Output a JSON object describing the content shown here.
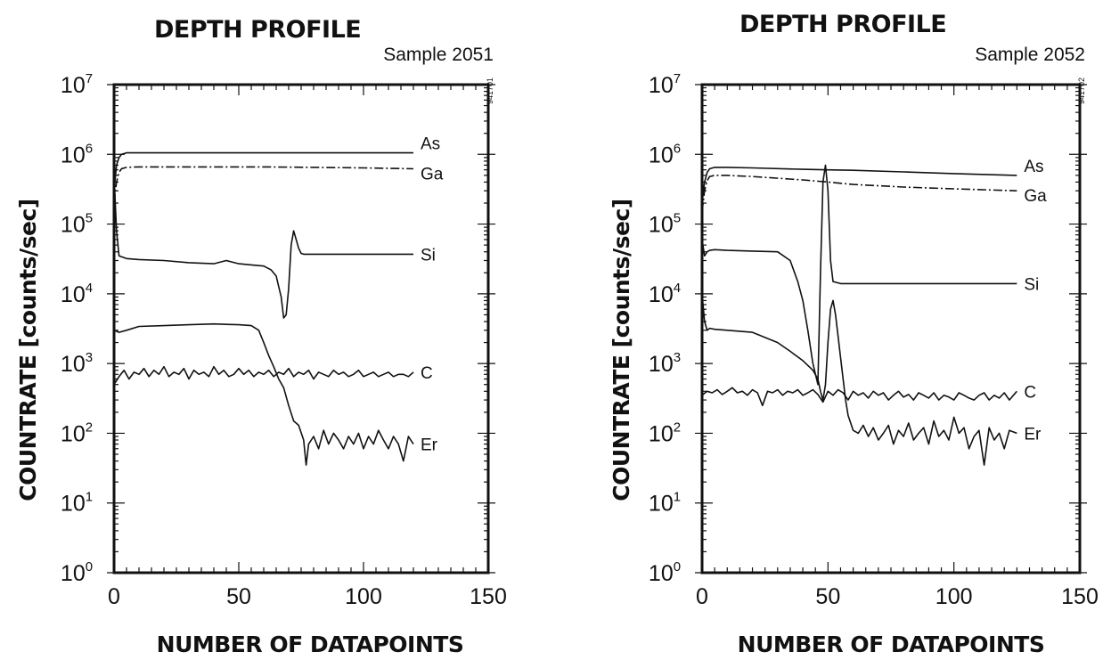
{
  "chart_data": [
    {
      "type": "line",
      "title": "DEPTH PROFILE",
      "subtitle": "Sample 2051",
      "code": "941701",
      "xlabel": "NUMBER OF DATAPOINTS",
      "ylabel": "COUNTRATE [counts/sec]",
      "xlim": [
        0,
        150
      ],
      "ylim": [
        1,
        10000000
      ],
      "yscale": "log",
      "xticks": [
        "0",
        "50",
        "100",
        "150"
      ],
      "yticks": [
        {
          "base": "10",
          "exp": "7"
        },
        {
          "base": "10",
          "exp": "6"
        },
        {
          "base": "10",
          "exp": "5"
        },
        {
          "base": "10",
          "exp": "4"
        },
        {
          "base": "10",
          "exp": "3"
        },
        {
          "base": "10",
          "exp": "2"
        },
        {
          "base": "10",
          "exp": "1"
        },
        {
          "base": "10",
          "exp": "0"
        }
      ],
      "series": [
        {
          "name": "As",
          "style": "solid",
          "x": [
            0,
            1,
            2,
            3,
            5,
            10,
            20,
            40,
            60,
            80,
            100,
            120
          ],
          "y": [
            300000,
            700000,
            900000,
            1000000,
            1050000,
            1050000,
            1050000,
            1050000,
            1050000,
            1050000,
            1050000,
            1050000
          ]
        },
        {
          "name": "Ga",
          "style": "dashdot",
          "x": [
            0,
            1,
            2,
            3,
            5,
            10,
            20,
            40,
            60,
            80,
            100,
            120
          ],
          "y": [
            200000,
            400000,
            550000,
            620000,
            650000,
            660000,
            660000,
            660000,
            660000,
            650000,
            640000,
            620000
          ]
        },
        {
          "name": "Si",
          "style": "solid",
          "x": [
            0,
            1,
            2,
            5,
            10,
            20,
            30,
            40,
            45,
            50,
            55,
            60,
            63,
            65,
            67,
            68,
            69,
            70,
            71,
            72,
            73,
            74,
            75,
            76,
            80,
            90,
            100,
            110,
            120
          ],
          "y": [
            500000,
            80000,
            35000,
            32000,
            31000,
            30000,
            28000,
            27000,
            30000,
            27000,
            26000,
            25000,
            22000,
            18000,
            9000,
            4500,
            5000,
            12000,
            50000,
            80000,
            60000,
            45000,
            38000,
            37000,
            37000,
            37000,
            37000,
            37000,
            37000
          ]
        },
        {
          "name": "C",
          "style": "solid",
          "x": [
            0,
            2,
            4,
            6,
            8,
            10,
            12,
            14,
            16,
            18,
            20,
            22,
            24,
            26,
            28,
            30,
            32,
            34,
            36,
            38,
            40,
            42,
            44,
            46,
            48,
            50,
            52,
            54,
            56,
            58,
            60,
            62,
            64,
            66,
            68,
            70,
            72,
            74,
            76,
            78,
            80,
            82,
            84,
            86,
            88,
            90,
            92,
            94,
            96,
            98,
            100,
            102,
            104,
            106,
            108,
            110,
            112,
            114,
            116,
            118,
            120
          ],
          "y": [
            500,
            650,
            800,
            600,
            750,
            700,
            850,
            650,
            800,
            700,
            900,
            650,
            750,
            700,
            850,
            600,
            800,
            700,
            750,
            650,
            900,
            700,
            800,
            650,
            700,
            850,
            700,
            800,
            650,
            750,
            700,
            800,
            650,
            750,
            700,
            850,
            650,
            750,
            700,
            800,
            600,
            750,
            700,
            650,
            800,
            700,
            750,
            650,
            700,
            800,
            650,
            700,
            750,
            650,
            700,
            750,
            650,
            700,
            700,
            650,
            750
          ]
        },
        {
          "name": "Er",
          "style": "solid",
          "x": [
            0,
            2,
            5,
            10,
            20,
            30,
            40,
            50,
            55,
            58,
            60,
            62,
            64,
            66,
            68,
            70,
            72,
            74,
            76,
            77,
            78,
            80,
            82,
            84,
            86,
            88,
            90,
            92,
            94,
            96,
            98,
            100,
            102,
            104,
            106,
            108,
            110,
            112,
            114,
            116,
            118,
            120
          ],
          "y": [
            3000,
            2800,
            3000,
            3400,
            3500,
            3600,
            3700,
            3600,
            3500,
            3000,
            2000,
            1300,
            900,
            600,
            450,
            250,
            150,
            130,
            80,
            35,
            70,
            90,
            60,
            110,
            70,
            100,
            80,
            60,
            90,
            70,
            100,
            60,
            90,
            70,
            110,
            80,
            60,
            90,
            70,
            40,
            90,
            70
          ]
        }
      ]
    },
    {
      "type": "line",
      "title": "DEPTH PROFILE",
      "subtitle": "Sample 2052",
      "code": "941702",
      "xlabel": "NUMBER OF DATAPOINTS",
      "ylabel": "COUNTRATE [counts/sec]",
      "xlim": [
        0,
        150
      ],
      "ylim": [
        1,
        10000000
      ],
      "yscale": "log",
      "xticks": [
        "0",
        "50",
        "100",
        "150"
      ],
      "yticks": [
        {
          "base": "10",
          "exp": "7"
        },
        {
          "base": "10",
          "exp": "6"
        },
        {
          "base": "10",
          "exp": "5"
        },
        {
          "base": "10",
          "exp": "4"
        },
        {
          "base": "10",
          "exp": "3"
        },
        {
          "base": "10",
          "exp": "2"
        },
        {
          "base": "10",
          "exp": "1"
        },
        {
          "base": "10",
          "exp": "0"
        }
      ],
      "series": [
        {
          "name": "As",
          "style": "solid",
          "x": [
            0,
            1,
            2,
            3,
            5,
            10,
            20,
            40,
            50,
            60,
            80,
            100,
            125
          ],
          "y": [
            200000,
            400000,
            550000,
            620000,
            650000,
            650000,
            640000,
            610000,
            600000,
            590000,
            560000,
            530000,
            500000
          ]
        },
        {
          "name": "Ga",
          "style": "dashdot",
          "x": [
            0,
            1,
            2,
            3,
            5,
            10,
            20,
            40,
            50,
            60,
            80,
            100,
            125
          ],
          "y": [
            150000,
            300000,
            420000,
            480000,
            500000,
            500000,
            480000,
            430000,
            400000,
            370000,
            340000,
            320000,
            300000
          ]
        },
        {
          "name": "Si",
          "style": "solid",
          "x": [
            0,
            1,
            2,
            3,
            5,
            10,
            20,
            30,
            35,
            38,
            40,
            42,
            44,
            46,
            47,
            48,
            49,
            50,
            51,
            52,
            55,
            60,
            80,
            100,
            125
          ],
          "y": [
            60000,
            35000,
            40000,
            42000,
            43000,
            42000,
            41000,
            40000,
            30000,
            15000,
            8000,
            3000,
            1000,
            500,
            20000,
            400000,
            700000,
            300000,
            30000,
            15000,
            14000,
            14000,
            14000,
            14000,
            14000
          ]
        },
        {
          "name": "C",
          "style": "solid",
          "x": [
            0,
            2,
            4,
            6,
            8,
            10,
            12,
            14,
            16,
            18,
            20,
            22,
            24,
            26,
            28,
            30,
            32,
            34,
            36,
            38,
            40,
            42,
            44,
            46,
            48,
            50,
            52,
            54,
            56,
            58,
            60,
            62,
            64,
            66,
            68,
            70,
            72,
            74,
            76,
            78,
            80,
            82,
            84,
            86,
            88,
            90,
            92,
            94,
            96,
            98,
            100,
            102,
            104,
            106,
            108,
            110,
            112,
            114,
            116,
            118,
            120,
            122,
            125
          ],
          "y": [
            350,
            400,
            380,
            420,
            360,
            400,
            450,
            380,
            400,
            350,
            420,
            380,
            250,
            400,
            380,
            420,
            350,
            400,
            380,
            420,
            350,
            380,
            420,
            360,
            280,
            400,
            350,
            420,
            380,
            300,
            400,
            350,
            380,
            320,
            400,
            350,
            380,
            300,
            350,
            400,
            330,
            360,
            300,
            380,
            350,
            320,
            380,
            300,
            350,
            330,
            300,
            380,
            350,
            320,
            300,
            350,
            380,
            300,
            350,
            320,
            380,
            300,
            400
          ]
        },
        {
          "name": "Er",
          "style": "solid",
          "x": [
            0,
            1,
            2,
            3,
            5,
            10,
            20,
            30,
            35,
            40,
            44,
            46,
            47,
            48,
            49,
            50,
            51,
            52,
            53,
            54,
            55,
            56,
            57,
            58,
            60,
            62,
            64,
            66,
            68,
            70,
            72,
            74,
            76,
            78,
            80,
            82,
            84,
            86,
            88,
            90,
            92,
            94,
            96,
            98,
            100,
            102,
            104,
            106,
            108,
            110,
            112,
            114,
            116,
            118,
            120,
            122,
            125
          ],
          "y": [
            10000,
            4000,
            3000,
            3200,
            3100,
            3000,
            2800,
            2000,
            1500,
            1100,
            800,
            600,
            400,
            300,
            500,
            2000,
            6000,
            8000,
            5000,
            2500,
            1200,
            600,
            300,
            180,
            110,
            100,
            130,
            90,
            120,
            80,
            100,
            130,
            70,
            110,
            90,
            140,
            80,
            100,
            120,
            70,
            150,
            90,
            110,
            80,
            170,
            100,
            120,
            60,
            90,
            110,
            35,
            120,
            80,
            100,
            60,
            110,
            100
          ]
        }
      ]
    }
  ]
}
